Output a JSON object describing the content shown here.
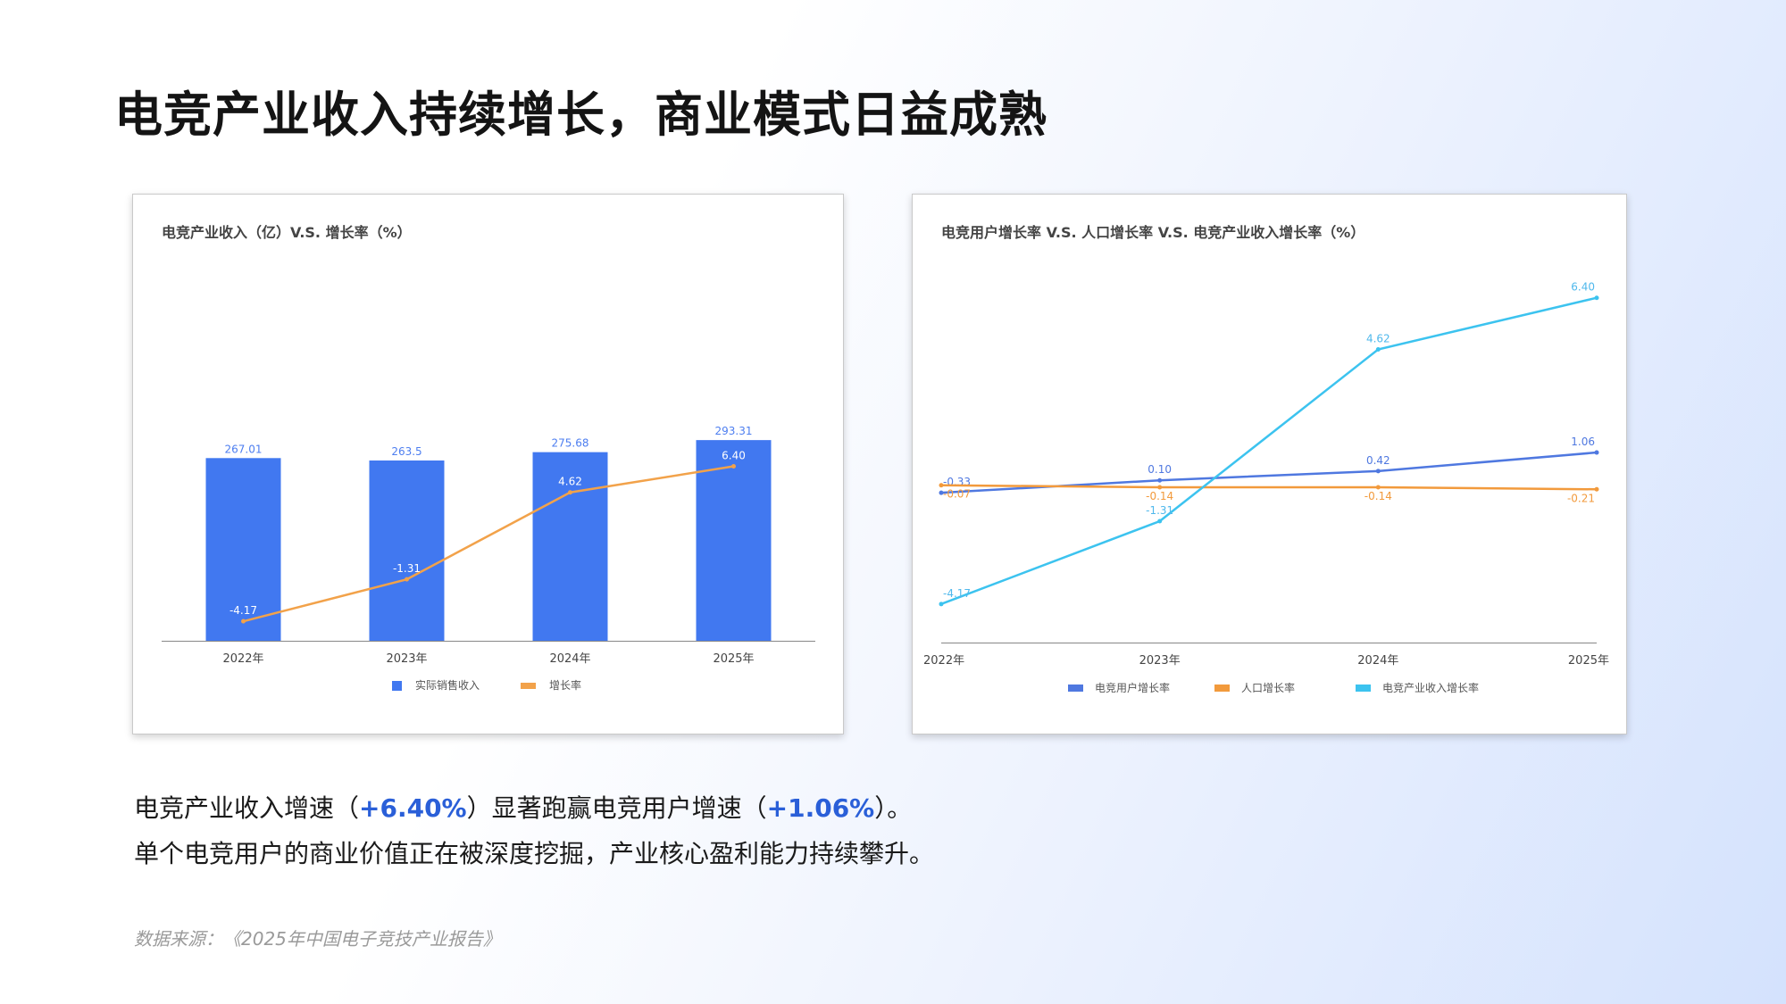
{
  "page": {
    "title": "电竞产业收入持续增长，商业模式日益成熟",
    "line1_a": "电竞产业收入增速（",
    "line1_b": "+6.40%",
    "line1_c": "）显著跑赢电竞用户增速（",
    "line1_d": "+1.06%",
    "line1_e": "）。",
    "line2": "单个电竞用户的商业价值正在被深度挖掘，产业核心盈利能力持续攀升。",
    "source": "数据来源：《2025年中国电子竞技产业报告》"
  },
  "chart_data": [
    {
      "type": "bar",
      "title": "电竞产业收入（亿）V.S. 增长率（%）",
      "categories": [
        "2022年",
        "2023年",
        "2024年",
        "2025年"
      ],
      "series": [
        {
          "name": "实际销售收入",
          "kind": "bar",
          "color": "#4178f0",
          "values": [
            267.01,
            263.5,
            275.68,
            293.31
          ],
          "labels": [
            "267.01",
            "263.5",
            "275.68",
            "293.31"
          ]
        },
        {
          "name": "增长率",
          "kind": "line",
          "color": "#f2a24a",
          "values": [
            -4.17,
            -1.31,
            4.62,
            6.4
          ],
          "labels": [
            "-4.17",
            "-1.31",
            "4.62",
            "6.40"
          ]
        }
      ],
      "ylim": [
        0,
        300
      ],
      "y2lim": [
        -5.5,
        8.5
      ],
      "legend": "bottom"
    },
    {
      "type": "line",
      "title": "电竞用户增长率 V.S. 人口增长率 V.S. 电竞产业收入增长率（%）",
      "categories": [
        "2022年",
        "2023年",
        "2024年",
        "2025年"
      ],
      "series": [
        {
          "name": "电竞用户增长率",
          "color": "#4f78e0",
          "values": [
            -0.33,
            0.1,
            0.42,
            1.06
          ],
          "labels": [
            "-0.33",
            "0.10",
            "0.42",
            "1.06"
          ]
        },
        {
          "name": "人口增长率",
          "color": "#f29a3c",
          "values": [
            -0.07,
            -0.14,
            -0.14,
            -0.21
          ],
          "labels": [
            "-0.07",
            "-0.14",
            "-0.14",
            "-0.21"
          ]
        },
        {
          "name": "电竞产业收入增长率",
          "color": "#3cc3ef",
          "values": [
            -4.17,
            -1.31,
            4.62,
            6.4
          ],
          "labels": [
            "-4.17",
            "-1.31",
            "4.62",
            "6.40"
          ]
        }
      ],
      "ylim": [
        -5.5,
        7.5
      ],
      "legend": "bottom"
    }
  ]
}
